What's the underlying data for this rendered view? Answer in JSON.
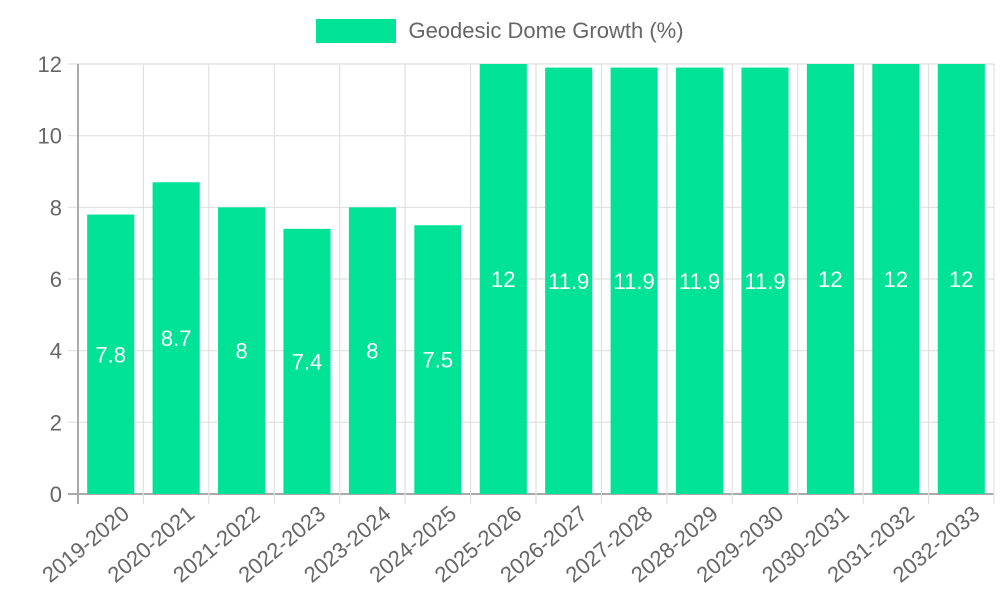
{
  "chart_data": {
    "type": "bar",
    "title": "",
    "legend": [
      "Geodesic Dome Growth (%)"
    ],
    "legend_position": "top",
    "xlabel": "",
    "ylabel": "",
    "ylim": [
      0,
      12
    ],
    "yticks": [
      0,
      2,
      4,
      6,
      8,
      10,
      12
    ],
    "grid": true,
    "color": "#00e396",
    "categories": [
      "2019-2020",
      "2020-2021",
      "2021-2022",
      "2022-2023",
      "2023-2024",
      "2024-2025",
      "2025-2026",
      "2026-2027",
      "2027-2028",
      "2028-2029",
      "2029-2030",
      "2030-2031",
      "2031-2032",
      "2032-2033"
    ],
    "series": [
      {
        "name": "Geodesic Dome Growth (%)",
        "values": [
          7.8,
          8.7,
          8,
          7.4,
          8,
          7.5,
          12,
          11.9,
          11.9,
          11.9,
          11.9,
          12,
          12,
          12
        ]
      }
    ]
  },
  "legend": {
    "label": "Geodesic Dome Growth (%)"
  }
}
